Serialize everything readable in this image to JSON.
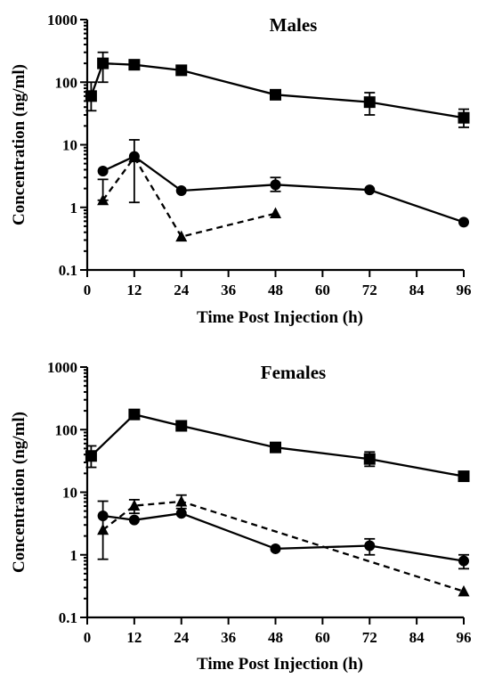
{
  "chart_data": [
    {
      "type": "line",
      "title": "Males",
      "xlabel": "Time Post Injection (h)",
      "ylabel": "Concentration (ng/ml)",
      "yscale": "log",
      "xlim": [
        0,
        96
      ],
      "ylim": [
        0.1,
        1000
      ],
      "xticks": [
        0,
        12,
        24,
        36,
        48,
        60,
        72,
        84,
        96
      ],
      "yticks": [
        "0.1",
        "1",
        "10",
        "100",
        "1000"
      ],
      "series": [
        {
          "marker": "square",
          "dash": "solid",
          "x": [
            1,
            4,
            12,
            24,
            48,
            72,
            96
          ],
          "y": [
            60,
            200,
            190,
            155,
            63,
            48,
            27
          ],
          "err": [
            [
              35,
              100
            ],
            [
              100,
              300
            ],
            null,
            null,
            null,
            [
              30,
              68
            ],
            [
              19,
              37
            ]
          ]
        },
        {
          "marker": "circle",
          "dash": "solid",
          "x": [
            4,
            12,
            24,
            48,
            72,
            96
          ],
          "y": [
            3.8,
            6.5,
            1.85,
            2.3,
            1.9,
            0.58
          ],
          "err": [
            null,
            [
              1.2,
              12
            ],
            null,
            [
              1.8,
              3.0
            ],
            null,
            null
          ]
        },
        {
          "marker": "triangle",
          "dash": "dashed",
          "x": [
            4,
            12,
            24,
            48
          ],
          "y": [
            1.3,
            6.3,
            0.34,
            0.8
          ],
          "err": [
            [
              1.3,
              2.8
            ],
            null,
            null,
            null
          ]
        }
      ]
    },
    {
      "type": "line",
      "title": "Females",
      "xlabel": "Time Post Injection (h)",
      "ylabel": "Concentration (ng/ml)",
      "yscale": "log",
      "xlim": [
        0,
        96
      ],
      "ylim": [
        0.1,
        1000
      ],
      "xticks": [
        0,
        12,
        24,
        36,
        48,
        60,
        72,
        84,
        96
      ],
      "yticks": [
        "0.1",
        "1",
        "10",
        "100",
        "1000"
      ],
      "series": [
        {
          "marker": "square",
          "dash": "solid",
          "x": [
            1,
            12,
            24,
            48,
            72,
            96
          ],
          "y": [
            38,
            175,
            115,
            52,
            34,
            18
          ],
          "err": [
            [
              25,
              55
            ],
            [
              150,
              200
            ],
            null,
            null,
            [
              26,
              44
            ],
            null
          ]
        },
        {
          "marker": "circle",
          "dash": "solid",
          "x": [
            4,
            12,
            24,
            48,
            72,
            96
          ],
          "y": [
            4.2,
            3.6,
            4.6,
            1.25,
            1.4,
            0.8
          ],
          "err": [
            null,
            null,
            null,
            null,
            [
              1.0,
              1.8
            ],
            [
              0.6,
              1.0
            ]
          ]
        },
        {
          "marker": "triangle",
          "dash": "dashed",
          "x": [
            4,
            12,
            24,
            96
          ],
          "y": [
            2.5,
            6.1,
            7.1,
            0.26
          ],
          "err": [
            [
              0.85,
              7.2
            ],
            [
              4.6,
              7.6
            ],
            [
              5.5,
              9.0
            ],
            null
          ]
        }
      ]
    }
  ]
}
